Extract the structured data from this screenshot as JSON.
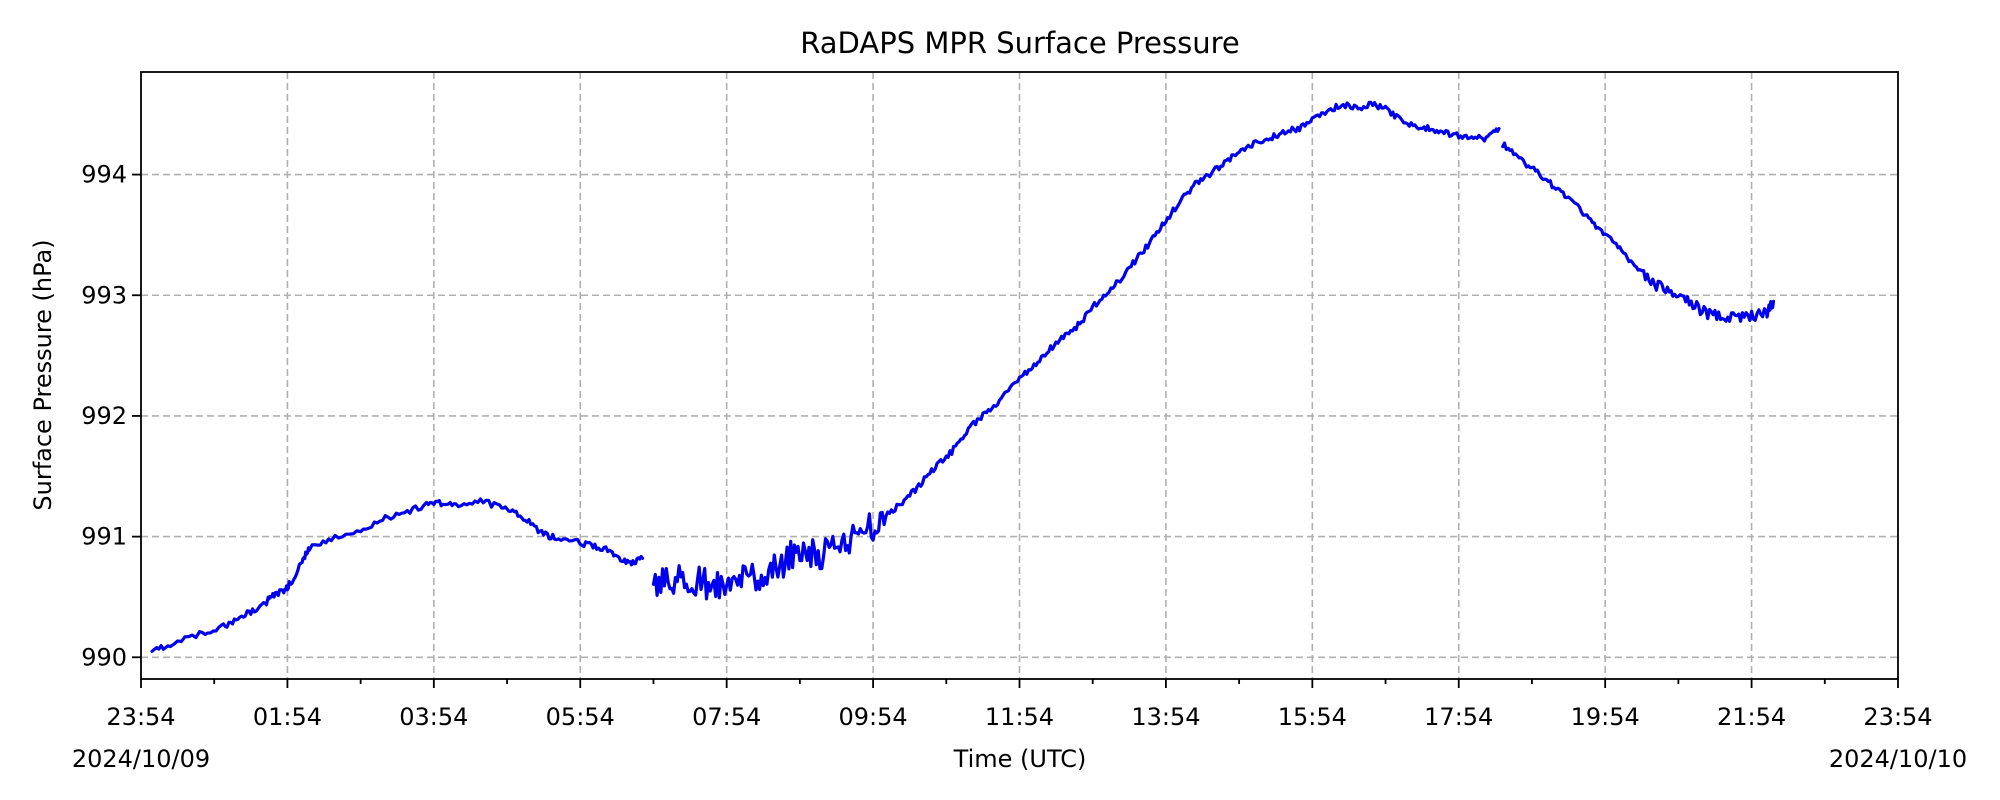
{
  "chart_data": {
    "type": "line",
    "title": "RaDAPS MPR Surface Pressure",
    "xlabel": "Time (UTC)",
    "ylabel": "Surface Pressure (hPa)",
    "x_unit": "hours after 2024/10/09 23:54 UTC",
    "xlim": [
      0,
      24
    ],
    "ylim": [
      989.82,
      994.85
    ],
    "x_tick_labels": [
      "23:54",
      "01:54",
      "03:54",
      "05:54",
      "07:54",
      "09:54",
      "11:54",
      "13:54",
      "15:54",
      "17:54",
      "19:54",
      "21:54",
      "23:54"
    ],
    "x_date_labels": {
      "left": "2024/10/09",
      "right": "2024/10/10"
    },
    "y_ticks": [
      990,
      991,
      992,
      993,
      994
    ],
    "grid": true,
    "series": [
      {
        "color": "#0000ee",
        "segments": [
          [
            [
              0.15,
              990.05
            ],
            [
              0.4,
              990.1
            ],
            [
              0.8,
              990.2
            ],
            [
              1.1,
              990.25
            ],
            [
              1.3,
              990.3
            ],
            [
              1.5,
              990.38
            ],
            [
              1.7,
              990.45
            ],
            [
              1.8,
              990.52
            ],
            [
              1.95,
              990.55
            ],
            [
              2.05,
              990.62
            ],
            [
              2.2,
              990.8
            ],
            [
              2.3,
              990.9
            ],
            [
              2.6,
              990.98
            ],
            [
              3.0,
              991.05
            ],
            [
              3.3,
              991.15
            ],
            [
              3.6,
              991.2
            ],
            [
              3.9,
              991.26
            ],
            [
              4.1,
              991.28
            ],
            [
              4.3,
              991.25
            ],
            [
              4.6,
              991.3
            ],
            [
              4.9,
              991.25
            ],
            [
              5.1,
              991.2
            ],
            [
              5.3,
              991.12
            ],
            [
              5.5,
              991.02
            ],
            [
              5.7,
              990.98
            ],
            [
              6.0,
              990.95
            ],
            [
              6.2,
              990.92
            ],
            [
              6.4,
              990.88
            ],
            [
              6.55,
              990.82
            ],
            [
              6.7,
              990.78
            ],
            [
              6.85,
              990.82
            ]
          ],
          [
            [
              7.0,
              990.58
            ],
            [
              7.2,
              990.62
            ],
            [
              7.4,
              990.7
            ],
            [
              7.6,
              990.62
            ],
            [
              7.8,
              990.6
            ],
            [
              8.0,
              990.55
            ],
            [
              8.2,
              990.62
            ],
            [
              8.4,
              990.68
            ],
            [
              8.6,
              990.72
            ],
            [
              8.8,
              990.8
            ],
            [
              9.0,
              990.9
            ],
            [
              9.2,
              990.85
            ],
            [
              9.4,
              990.88
            ],
            [
              9.6,
              990.95
            ],
            [
              9.8,
              991.02
            ],
            [
              10.0,
              991.08
            ],
            [
              10.2,
              991.18
            ],
            [
              10.4,
              991.28
            ],
            [
              10.6,
              991.4
            ],
            [
              10.8,
              991.55
            ],
            [
              11.0,
              991.65
            ],
            [
              11.2,
              991.8
            ],
            [
              11.4,
              991.95
            ],
            [
              11.6,
              992.05
            ],
            [
              11.8,
              992.18
            ],
            [
              12.0,
              992.3
            ],
            [
              12.2,
              992.42
            ],
            [
              12.4,
              992.55
            ],
            [
              12.6,
              992.65
            ],
            [
              12.8,
              992.75
            ],
            [
              13.0,
              992.9
            ],
            [
              13.2,
              993.02
            ],
            [
              13.4,
              993.15
            ],
            [
              13.6,
              993.3
            ],
            [
              13.8,
              993.45
            ],
            [
              14.0,
              993.62
            ],
            [
              14.2,
              993.78
            ],
            [
              14.4,
              993.92
            ],
            [
              14.6,
              994.0
            ],
            [
              14.8,
              994.1
            ],
            [
              15.0,
              994.18
            ],
            [
              15.2,
              994.25
            ],
            [
              15.4,
              994.3
            ],
            [
              15.6,
              994.35
            ],
            [
              15.8,
              994.38
            ],
            [
              16.0,
              994.45
            ],
            [
              16.2,
              994.52
            ],
            [
              16.4,
              994.58
            ],
            [
              16.6,
              994.55
            ],
            [
              16.8,
              994.58
            ],
            [
              17.0,
              994.55
            ],
            [
              17.2,
              994.45
            ],
            [
              17.4,
              994.4
            ],
            [
              17.6,
              994.38
            ],
            [
              17.8,
              994.35
            ],
            [
              18.0,
              994.32
            ],
            [
              18.2,
              994.3
            ],
            [
              18.4,
              994.3
            ],
            [
              18.55,
              994.38
            ]
          ],
          [
            [
              18.6,
              994.25
            ],
            [
              18.8,
              994.15
            ],
            [
              19.0,
              994.05
            ],
            [
              19.2,
              993.95
            ],
            [
              19.4,
              993.85
            ],
            [
              19.6,
              993.75
            ],
            [
              19.8,
              993.62
            ],
            [
              20.0,
              993.5
            ],
            [
              20.2,
              993.38
            ],
            [
              20.4,
              993.25
            ],
            [
              20.6,
              993.12
            ],
            [
              20.8,
              993.05
            ],
            [
              21.0,
              992.98
            ],
            [
              21.2,
              992.92
            ],
            [
              21.4,
              992.85
            ],
            [
              21.6,
              992.82
            ],
            [
              21.8,
              992.8
            ],
            [
              22.0,
              992.82
            ],
            [
              22.2,
              992.85
            ],
            [
              22.3,
              992.95
            ]
          ]
        ]
      }
    ]
  }
}
